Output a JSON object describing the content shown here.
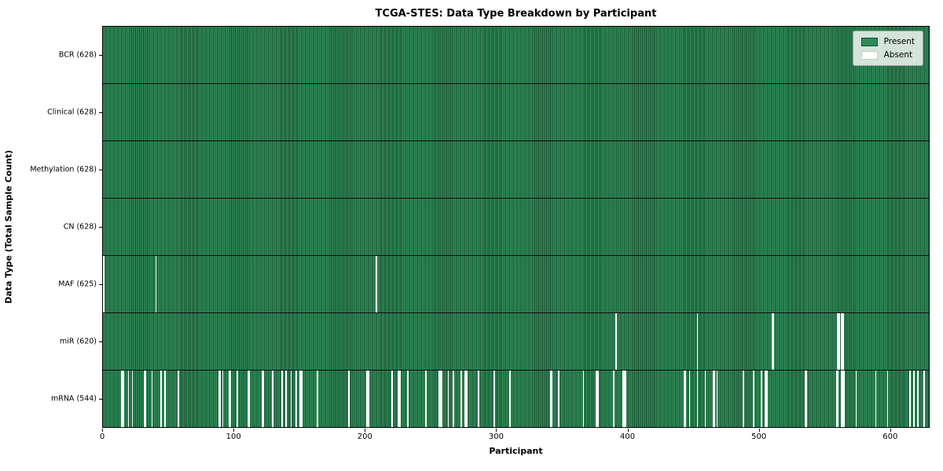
{
  "chart_data": {
    "type": "heatmap",
    "title": "TCGA-STES: Data Type Breakdown by Participant",
    "xlabel": "Participant",
    "ylabel": "Data Type (Total Sample Count)",
    "x_ticks": [
      0,
      100,
      200,
      300,
      400,
      500,
      600
    ],
    "xlim": [
      0,
      630
    ],
    "n_participants": 628,
    "grid": false,
    "legend": {
      "position": "upper right",
      "entries": [
        {
          "label": "Present",
          "color": "#2e8b57",
          "edge": "#1b4d30"
        },
        {
          "label": "Absent",
          "color": "#ffffff",
          "edge": "#c8c8c8"
        }
      ]
    },
    "colors": {
      "present": "#2e8b57",
      "present_edge": "#1b4d30",
      "absent": "#ffffff",
      "row_divider": "#0d0d0d",
      "background": "#ffffff"
    },
    "rows": [
      {
        "label": "BCR (628)",
        "data_type": "BCR",
        "present_count": 628,
        "absent_count": 0,
        "absent_participants": []
      },
      {
        "label": "Clinical (628)",
        "data_type": "Clinical",
        "present_count": 628,
        "absent_count": 0,
        "absent_participants": []
      },
      {
        "label": "Methylation (628)",
        "data_type": "Methylation",
        "present_count": 628,
        "absent_count": 0,
        "absent_participants": []
      },
      {
        "label": "CN (628)",
        "data_type": "CN",
        "present_count": 628,
        "absent_count": 0,
        "absent_participants": []
      },
      {
        "label": "MAF (625)",
        "data_type": "MAF",
        "present_count": 625,
        "absent_count": 3,
        "absent_participants": [
          0,
          40,
          208
        ]
      },
      {
        "label": "miR (620)",
        "data_type": "miR",
        "present_count": 620,
        "absent_count": 8,
        "absent_participants": [
          391,
          453,
          510,
          511,
          560,
          561,
          563,
          564
        ]
      },
      {
        "label": "mRNA (544)",
        "data_type": "mRNA",
        "present_count": 544,
        "absent_count": 84,
        "absent_participants": [
          14,
          15,
          19,
          22,
          31,
          32,
          37,
          44,
          47,
          57,
          88,
          89,
          91,
          96,
          97,
          102,
          110,
          111,
          121,
          122,
          129,
          136,
          139,
          143,
          147,
          150,
          151,
          163,
          187,
          201,
          202,
          220,
          225,
          226,
          232,
          246,
          256,
          257,
          258,
          263,
          267,
          273,
          276,
          277,
          286,
          298,
          310,
          341,
          342,
          347,
          366,
          376,
          377,
          389,
          396,
          397,
          398,
          443,
          444,
          447,
          453,
          459,
          465,
          466,
          468,
          488,
          496,
          502,
          505,
          506,
          535,
          536,
          559,
          560,
          563,
          564,
          565,
          574,
          589,
          598,
          615,
          618,
          621,
          626
        ]
      }
    ]
  }
}
